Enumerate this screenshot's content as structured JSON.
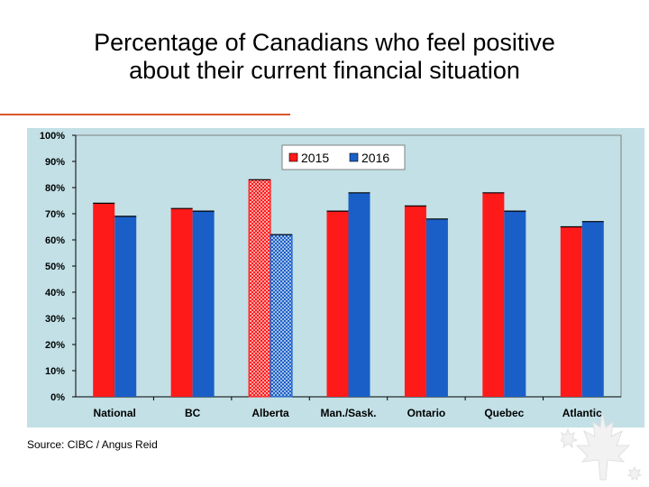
{
  "slide": {
    "title_line1": "Percentage of Canadians who feel positive",
    "title_line2": "about their current financial situation",
    "source": "Source:  CIBC / Angus Reid"
  },
  "colors": {
    "background": "#ffffff",
    "plot_area": "#c2e0e6",
    "series_2015": "#ff1a1a",
    "series_2016": "#1a5fc8",
    "title_rule": "#d9552b"
  },
  "chart_data": {
    "type": "bar",
    "title": "",
    "xlabel": "",
    "ylabel": "",
    "categories": [
      "National",
      "BC",
      "Alberta",
      "Man./Sask.",
      "Ontario",
      "Quebec",
      "Atlantic"
    ],
    "series": [
      {
        "name": "2015",
        "values": [
          74,
          72,
          83,
          71,
          73,
          78,
          65
        ]
      },
      {
        "name": "2016",
        "values": [
          69,
          71,
          62,
          78,
          68,
          71,
          67
        ]
      }
    ],
    "ylim": [
      0,
      100
    ],
    "yticks": [
      "0%",
      "10%",
      "20%",
      "30%",
      "40%",
      "50%",
      "60%",
      "70%",
      "80%",
      "90%",
      "100%"
    ],
    "grid": false,
    "legend_position": "top-right",
    "highlighted_category": "Alberta"
  }
}
